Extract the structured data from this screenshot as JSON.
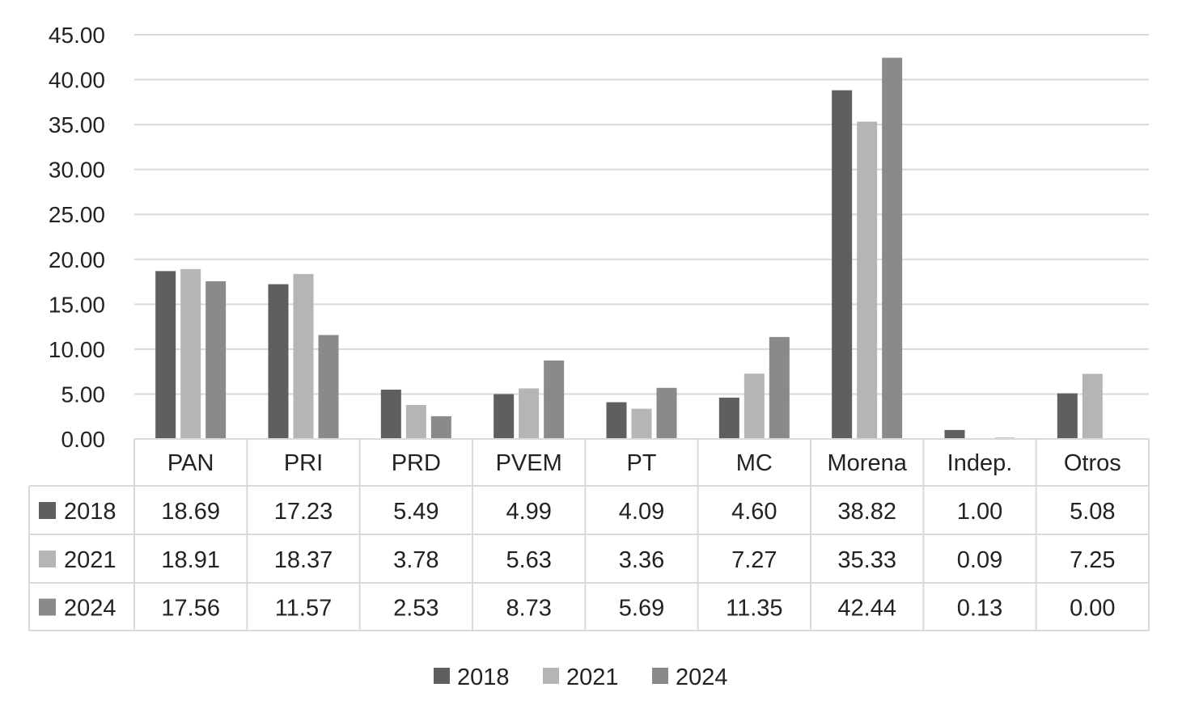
{
  "chart_data": {
    "type": "bar",
    "title": "",
    "xlabel": "",
    "ylabel": "",
    "ylim": [
      0,
      45
    ],
    "yticks": [
      "0.00",
      "5.00",
      "10.00",
      "15.00",
      "20.00",
      "25.00",
      "30.00",
      "35.00",
      "40.00",
      "45.00"
    ],
    "grid": true,
    "legend_position": "bottom",
    "categories": [
      "PAN",
      "PRI",
      "PRD",
      "PVEM",
      "PT",
      "MC",
      "Morena",
      "Indep.",
      "Otros"
    ],
    "series": [
      {
        "name": "2018",
        "color": "#5f5f5f",
        "values": [
          18.69,
          17.23,
          5.49,
          4.99,
          4.09,
          4.6,
          38.82,
          1.0,
          5.08
        ],
        "labels": [
          "18.69",
          "17.23",
          "5.49",
          "4.99",
          "4.09",
          "4.60",
          "38.82",
          "1.00",
          "5.08"
        ]
      },
      {
        "name": "2021",
        "color": "#b5b5b5",
        "values": [
          18.91,
          18.37,
          3.78,
          5.63,
          3.36,
          7.27,
          35.33,
          0.09,
          7.25
        ],
        "labels": [
          "18.91",
          "18.37",
          "3.78",
          "5.63",
          "3.36",
          "7.27",
          "35.33",
          "0.09",
          "7.25"
        ]
      },
      {
        "name": "2024",
        "color": "#8a8a8a",
        "values": [
          17.56,
          11.57,
          2.53,
          8.73,
          5.69,
          11.35,
          42.44,
          0.13,
          0.0
        ],
        "labels": [
          "17.56",
          "11.57",
          "2.53",
          "8.73",
          "5.69",
          "11.35",
          "42.44",
          "0.13",
          "0.00"
        ]
      }
    ]
  }
}
